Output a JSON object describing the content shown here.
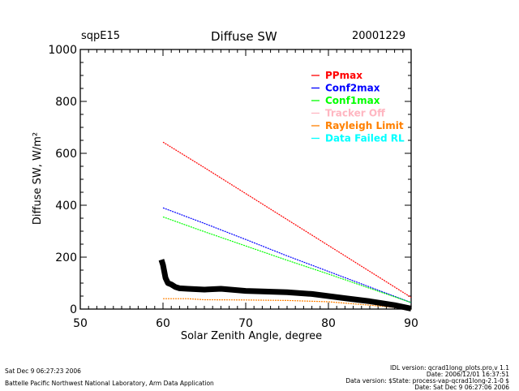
{
  "header": {
    "site": "sqpE15",
    "title": "Diffuse SW",
    "date": "20001229"
  },
  "chart_data": {
    "type": "line",
    "title": "Diffuse SW",
    "xlabel": "Solar Zenith Angle, degree",
    "ylabel": "Diffuse SW, W/m²",
    "xlim": [
      50,
      90
    ],
    "ylim": [
      0,
      1000
    ],
    "xticks": [
      "50",
      "60",
      "70",
      "80",
      "90"
    ],
    "yticks": [
      "0",
      "200",
      "400",
      "600",
      "800",
      "1000"
    ],
    "grid": false,
    "legend_position": "top-right",
    "legend": [
      {
        "name": "PPmax",
        "color": "#ff0000"
      },
      {
        "name": "Conf2max",
        "color": "#0000ff"
      },
      {
        "name": "Conf1max",
        "color": "#00ff00"
      },
      {
        "name": "Tracker Off",
        "color": "#ffb6c1"
      },
      {
        "name": "Rayleigh Limit",
        "color": "#ff8000"
      },
      {
        "name": "Data Failed RL",
        "color": "#00ffff"
      }
    ],
    "series": [
      {
        "name": "PPmax",
        "color": "#ff0000",
        "x": [
          60,
          65,
          70,
          75,
          80,
          85,
          90
        ],
        "y": [
          643,
          545,
          445,
          345,
          245,
          145,
          45
        ]
      },
      {
        "name": "Conf2max",
        "color": "#0000ff",
        "x": [
          60,
          65,
          70,
          75,
          80,
          85,
          90
        ],
        "y": [
          390,
          330,
          268,
          205,
          145,
          85,
          25
        ]
      },
      {
        "name": "Conf1max",
        "color": "#00ff00",
        "x": [
          60,
          65,
          70,
          75,
          80,
          85,
          90
        ],
        "y": [
          355,
          298,
          243,
          188,
          135,
          80,
          25
        ]
      },
      {
        "name": "Rayleigh Limit",
        "color": "#ff8000",
        "x": [
          60,
          63,
          65,
          70,
          75,
          80,
          85,
          90
        ],
        "y": [
          40,
          40,
          36,
          35,
          33,
          28,
          15,
          0
        ]
      },
      {
        "name": "Diffuse SW",
        "color": "#000000",
        "x": [
          59.8,
          60,
          60.3,
          60.6,
          61,
          61.5,
          62,
          63,
          65,
          67,
          70,
          72,
          75,
          78,
          80,
          82,
          85,
          88,
          90
        ],
        "y": [
          190,
          170,
          120,
          100,
          95,
          85,
          80,
          78,
          75,
          78,
          70,
          68,
          65,
          58,
          50,
          42,
          30,
          15,
          2
        ]
      }
    ]
  },
  "footer": {
    "left_line1": "Sat Dec  9 06:27:23 2006",
    "left_line2": "Battelle Pacific Northwest National Laboratory, Arm Data Application",
    "right_line1": "IDL version: qcrad1long_plots.pro,v 1.1",
    "right_line2": "Date: 2006/12/01 16:37:51",
    "right_line3": "Data version: $State: process-vap-qcrad1long-2.1-0 $",
    "right_line4": "Date: Sat Dec  9 06:27:06 2006"
  }
}
